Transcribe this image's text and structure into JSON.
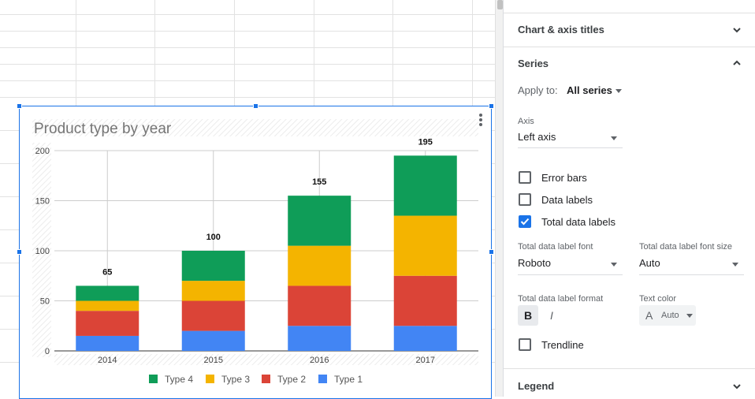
{
  "chart": {
    "title": "Product type by year",
    "menu_icon": "more-vert-icon"
  },
  "chart_data": {
    "type": "bar",
    "stacked": true,
    "title": "Product type by year",
    "categories": [
      "2014",
      "2015",
      "2016",
      "2017"
    ],
    "series": [
      {
        "name": "Type 1",
        "color": "#4285f4",
        "values": [
          15,
          20,
          25,
          25
        ]
      },
      {
        "name": "Type 2",
        "color": "#db4437",
        "values": [
          25,
          30,
          40,
          50
        ]
      },
      {
        "name": "Type 3",
        "color": "#f4b400",
        "values": [
          10,
          20,
          40,
          60
        ]
      },
      {
        "name": "Type 4",
        "color": "#0f9d58",
        "values": [
          15,
          30,
          50,
          60
        ]
      }
    ],
    "totals": [
      65,
      100,
      155,
      195
    ],
    "ylim": [
      0,
      200
    ],
    "yticks": [
      "0",
      "50",
      "100",
      "150",
      "200"
    ],
    "grid": true,
    "legend": "bottom",
    "legend_order": [
      "Type 4",
      "Type 3",
      "Type 2",
      "Type 1"
    ]
  },
  "panel": {
    "chart_axis_titles": "Chart & axis titles",
    "series_title": "Series",
    "apply_to_label": "Apply to:",
    "apply_to_value": "All series",
    "axis_label": "Axis",
    "axis_value": "Left axis",
    "error_bars": {
      "label": "Error bars",
      "checked": false
    },
    "data_labels": {
      "label": "Data labels",
      "checked": false
    },
    "total_data_labels": {
      "label": "Total data labels",
      "checked": true
    },
    "font_label": "Total data label font",
    "font_value": "Roboto",
    "font_size_label": "Total data label font size",
    "font_size_value": "Auto",
    "format_label": "Total data label format",
    "bold_glyph": "B",
    "italic_glyph": "I",
    "text_color_label": "Text color",
    "text_color_glyph": "A",
    "text_color_value": "Auto",
    "trendline": {
      "label": "Trendline",
      "checked": false
    },
    "legend_title": "Legend"
  }
}
